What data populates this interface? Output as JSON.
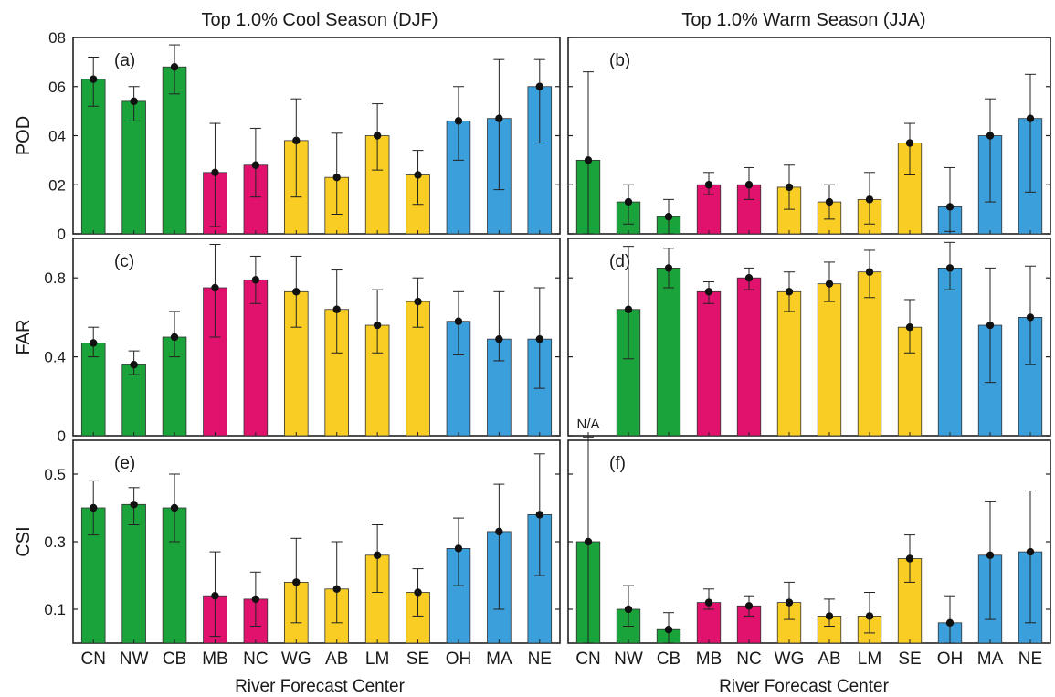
{
  "colors": {
    "green": "#19a33a",
    "magenta": "#e0126e",
    "yellow": "#f9cd24",
    "blue": "#3b9fdc",
    "frame": "#222222"
  },
  "categories": [
    "CN",
    "NW",
    "CB",
    "MB",
    "NC",
    "WG",
    "AB",
    "LM",
    "SE",
    "OH",
    "MA",
    "NE"
  ],
  "category_colors": [
    "green",
    "green",
    "green",
    "magenta",
    "magenta",
    "yellow",
    "yellow",
    "yellow",
    "yellow",
    "blue",
    "blue",
    "blue"
  ],
  "column_titles": [
    "Top 1.0% Cool Season (DJF)",
    "Top 1.0% Warm Season (JJA)"
  ],
  "xlabel": "River Forecast Center",
  "chart_data": [
    {
      "type": "bar",
      "panel": "(a)",
      "column": 0,
      "row": 0,
      "ylabel": "POD",
      "ylim": [
        0,
        0.8
      ],
      "yticks": [
        0,
        0.2,
        0.4,
        0.6,
        0.8
      ],
      "ytick_labels": [
        "0",
        "02",
        "04",
        "06",
        "08"
      ],
      "categories": [
        "CN",
        "NW",
        "CB",
        "MB",
        "NC",
        "WG",
        "AB",
        "LM",
        "SE",
        "OH",
        "MA",
        "NE"
      ],
      "values": [
        0.63,
        0.54,
        0.68,
        0.25,
        0.28,
        0.38,
        0.23,
        0.4,
        0.24,
        0.46,
        0.47,
        0.6
      ],
      "err_low": [
        0.52,
        0.46,
        0.57,
        0.03,
        0.15,
        0.15,
        0.08,
        0.26,
        0.12,
        0.3,
        0.18,
        0.37
      ],
      "err_high": [
        0.72,
        0.6,
        0.77,
        0.45,
        0.43,
        0.55,
        0.41,
        0.53,
        0.34,
        0.6,
        0.71,
        0.71
      ]
    },
    {
      "type": "bar",
      "panel": "(b)",
      "column": 1,
      "row": 0,
      "ylabel": "",
      "ylim": [
        0,
        0.8
      ],
      "yticks": [
        0,
        0.2,
        0.4,
        0.6,
        0.8
      ],
      "ytick_labels": [
        "",
        "",
        "",
        "",
        ""
      ],
      "categories": [
        "CN",
        "NW",
        "CB",
        "MB",
        "NC",
        "WG",
        "AB",
        "LM",
        "SE",
        "OH",
        "MA",
        "NE"
      ],
      "values": [
        0.3,
        0.13,
        0.07,
        0.2,
        0.2,
        0.19,
        0.13,
        0.14,
        0.37,
        0.11,
        0.4,
        0.47
      ],
      "err_low": [
        0.0,
        0.04,
        0.0,
        0.16,
        0.14,
        0.1,
        0.06,
        0.04,
        0.24,
        0.01,
        0.13,
        0.17
      ],
      "err_high": [
        0.66,
        0.2,
        0.14,
        0.25,
        0.27,
        0.28,
        0.2,
        0.25,
        0.45,
        0.27,
        0.55,
        0.65
      ]
    },
    {
      "type": "bar",
      "panel": "(c)",
      "column": 0,
      "row": 1,
      "ylabel": "FAR",
      "ylim": [
        0,
        1.0
      ],
      "yticks": [
        0,
        0.4,
        0.8
      ],
      "ytick_labels": [
        "0",
        "0.4",
        "0.8"
      ],
      "categories": [
        "CN",
        "NW",
        "CB",
        "MB",
        "NC",
        "WG",
        "AB",
        "LM",
        "SE",
        "OH",
        "MA",
        "NE"
      ],
      "values": [
        0.47,
        0.36,
        0.5,
        0.75,
        0.79,
        0.73,
        0.64,
        0.56,
        0.68,
        0.58,
        0.49,
        0.49
      ],
      "err_low": [
        0.4,
        0.31,
        0.4,
        0.5,
        0.67,
        0.55,
        0.42,
        0.42,
        0.55,
        0.41,
        0.38,
        0.24
      ],
      "err_high": [
        0.55,
        0.43,
        0.63,
        0.97,
        0.91,
        0.91,
        0.84,
        0.74,
        0.8,
        0.73,
        0.73,
        0.75
      ]
    },
    {
      "type": "bar",
      "panel": "(d)",
      "column": 1,
      "row": 1,
      "ylabel": "",
      "ylim": [
        0,
        1.0
      ],
      "yticks": [
        0,
        0.4,
        0.8
      ],
      "ytick_labels": [
        "",
        "",
        ""
      ],
      "categories": [
        "CN",
        "NW",
        "CB",
        "MB",
        "NC",
        "WG",
        "AB",
        "LM",
        "SE",
        "OH",
        "MA",
        "NE"
      ],
      "values": [
        null,
        0.64,
        0.85,
        0.73,
        0.8,
        0.73,
        0.77,
        0.83,
        0.55,
        0.85,
        0.56,
        0.6
      ],
      "err_low": [
        null,
        0.39,
        0.75,
        0.67,
        0.74,
        0.63,
        0.68,
        0.7,
        0.42,
        0.74,
        0.27,
        0.36
      ],
      "err_high": [
        null,
        0.96,
        0.95,
        0.78,
        0.85,
        0.83,
        0.88,
        0.94,
        0.69,
        0.98,
        0.85,
        0.86
      ],
      "annotations": [
        {
          "category": "CN",
          "text": "N/A"
        }
      ]
    },
    {
      "type": "bar",
      "panel": "(e)",
      "column": 0,
      "row": 2,
      "ylabel": "CSI",
      "ylim": [
        0,
        0.6
      ],
      "yticks": [
        0.1,
        0.3,
        0.5
      ],
      "ytick_labels": [
        "0.1",
        "0.3",
        "0.5"
      ],
      "categories": [
        "CN",
        "NW",
        "CB",
        "MB",
        "NC",
        "WG",
        "AB",
        "LM",
        "SE",
        "OH",
        "MA",
        "NE"
      ],
      "values": [
        0.4,
        0.41,
        0.4,
        0.14,
        0.13,
        0.18,
        0.16,
        0.26,
        0.15,
        0.28,
        0.33,
        0.38
      ],
      "err_low": [
        0.32,
        0.35,
        0.3,
        0.02,
        0.05,
        0.06,
        0.06,
        0.15,
        0.08,
        0.17,
        0.1,
        0.2
      ],
      "err_high": [
        0.48,
        0.46,
        0.5,
        0.27,
        0.21,
        0.31,
        0.3,
        0.35,
        0.22,
        0.37,
        0.47,
        0.56
      ]
    },
    {
      "type": "bar",
      "panel": "(f)",
      "column": 1,
      "row": 2,
      "ylabel": "",
      "ylim": [
        0,
        0.6
      ],
      "yticks": [
        0.1,
        0.3,
        0.5
      ],
      "ytick_labels": [
        "",
        "",
        ""
      ],
      "categories": [
        "CN",
        "NW",
        "CB",
        "MB",
        "NC",
        "WG",
        "AB",
        "LM",
        "SE",
        "OH",
        "MA",
        "NE"
      ],
      "values": [
        0.3,
        0.1,
        0.04,
        0.12,
        0.11,
        0.12,
        0.08,
        0.08,
        0.25,
        0.06,
        0.26,
        0.27
      ],
      "err_low": [
        0.0,
        0.05,
        0.0,
        0.1,
        0.08,
        0.07,
        0.05,
        0.03,
        0.18,
        0.0,
        0.07,
        0.06
      ],
      "err_high": [
        0.61,
        0.17,
        0.09,
        0.16,
        0.14,
        0.18,
        0.13,
        0.15,
        0.32,
        0.14,
        0.42,
        0.45
      ]
    }
  ]
}
